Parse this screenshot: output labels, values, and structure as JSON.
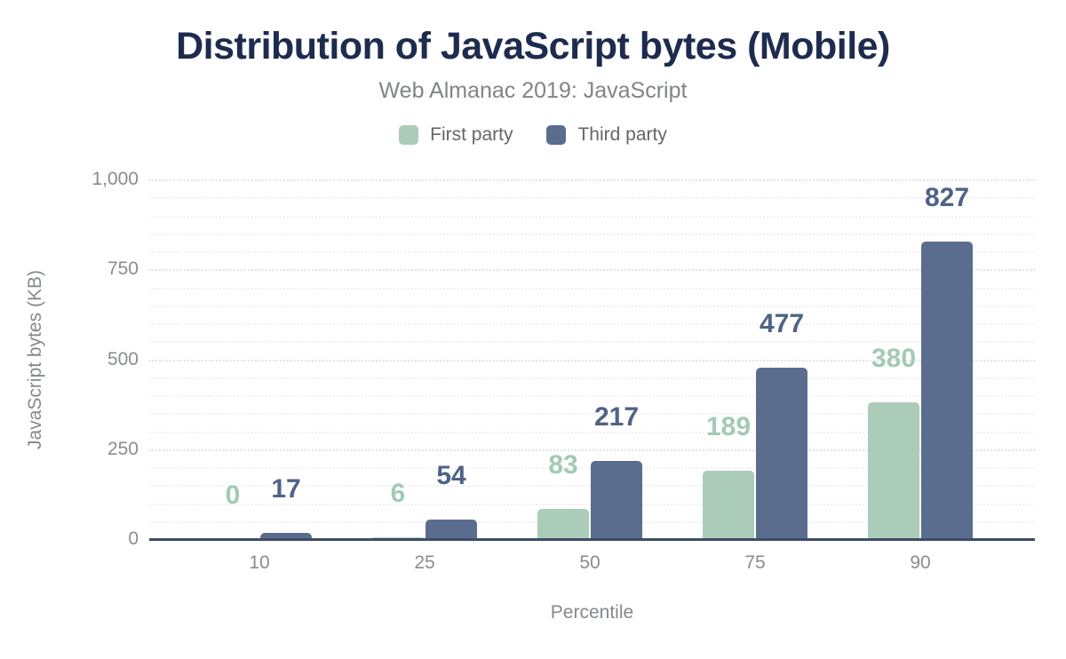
{
  "chart_data": {
    "type": "bar",
    "title": "Distribution of JavaScript bytes (Mobile)",
    "subtitle": "Web Almanac 2019: JavaScript",
    "categories": [
      "10",
      "25",
      "50",
      "75",
      "90"
    ],
    "series": [
      {
        "name": "First party",
        "values": [
          0,
          6,
          83,
          189,
          380
        ],
        "color": "#aaccb9",
        "label_color": "#a3cab4"
      },
      {
        "name": "Third party",
        "values": [
          17,
          54,
          217,
          477,
          827
        ],
        "color": "#5b6d8e",
        "label_color": "#4f6386"
      }
    ],
    "xlabel": "Percentile",
    "ylabel": "JavaScript bytes (KB)",
    "ylim": [
      0,
      1000
    ],
    "yticks": [
      0,
      250,
      500,
      750,
      1000
    ],
    "ytick_labels": [
      "0",
      "250",
      "500",
      "750",
      "1,000"
    ],
    "minor_grid_step": 50,
    "grid": true,
    "grid_style": "dotted",
    "legend_position": "top",
    "data_labels": true,
    "colors": {
      "title": "#1d2b4e",
      "subtitle": "#818488",
      "axis_text": "#898c90",
      "axis_line": "#3d4d66",
      "background": "#ffffff"
    }
  }
}
